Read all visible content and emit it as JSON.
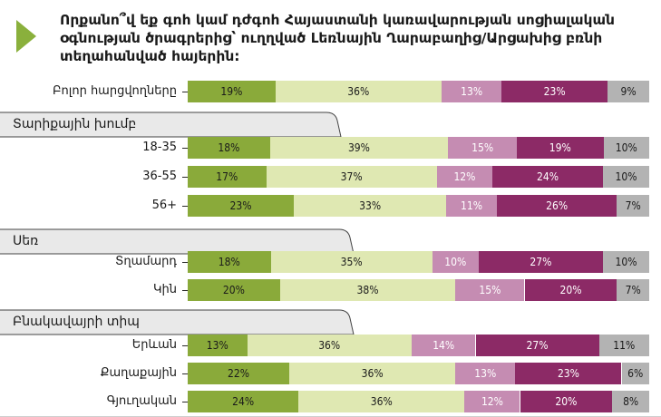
{
  "title": "Որքանո՞վ եք գոհ կամ դժգոհ Հայաստանի կառավարության սոցիալական օգնության ծրագրերից՝ ուղղված Լեռնային Ղարաբաղից/Արցախից բռնի տեղահանված հայերին:",
  "colors": [
    "#8aaa3a",
    "#dfe8b2",
    "#c58cb2",
    "#8c2a66",
    "#b3b3b3"
  ],
  "groups": [
    {
      "label": "Տարիքային խումբ"
    },
    {
      "label": "Սեռ"
    },
    {
      "label": "Բնակավայրի տիպ"
    }
  ],
  "chart_data": {
    "type": "bar",
    "stacked": true,
    "orientation": "horizontal",
    "categories": [
      "Բոլոր հարցվողները",
      "18-35",
      "36-55",
      "56+",
      "Տղամարդ",
      "Կին",
      "Երևան",
      "Քաղաքային",
      "Գյուղական"
    ],
    "series": [
      {
        "values": [
          19,
          18,
          17,
          23,
          18,
          20,
          13,
          22,
          24
        ]
      },
      {
        "values": [
          36,
          39,
          37,
          33,
          35,
          38,
          36,
          36,
          36
        ]
      },
      {
        "values": [
          13,
          15,
          12,
          11,
          10,
          15,
          14,
          13,
          12
        ]
      },
      {
        "values": [
          23,
          19,
          24,
          26,
          27,
          20,
          27,
          23,
          20
        ]
      },
      {
        "values": [
          9,
          10,
          10,
          7,
          10,
          7,
          11,
          6,
          8
        ]
      }
    ],
    "value_labels": [
      [
        "19%",
        "36%",
        "13%",
        "23%",
        "9%"
      ],
      [
        "18%",
        "39%",
        "15%",
        "19%",
        "10%"
      ],
      [
        "17%",
        "37%",
        "12%",
        "24%",
        "10%"
      ],
      [
        "23%",
        "33%",
        "11%",
        "26%",
        "7%"
      ],
      [
        "18%",
        "35%",
        "10%",
        "27%",
        "10%"
      ],
      [
        "20%",
        "38%",
        "15%",
        "20%",
        "7%"
      ],
      [
        "13%",
        "36%",
        "14%",
        "27%",
        "11%"
      ],
      [
        "22%",
        "36%",
        "13%",
        "23%",
        "6%"
      ],
      [
        "24%",
        "36%",
        "12%",
        "20%",
        "8%"
      ]
    ],
    "xlim": [
      0,
      100
    ],
    "legend": "none",
    "grid": false
  }
}
